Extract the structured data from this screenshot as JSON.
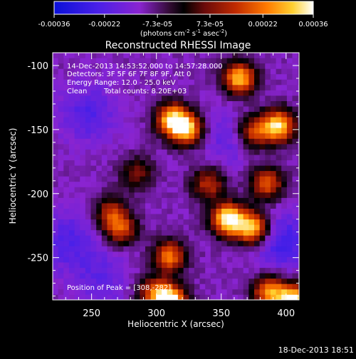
{
  "chart_data": {
    "type": "heatmap",
    "title": "Reconstructed RHESSI Image",
    "xlabel": "Heliocentric X (arcsec)",
    "ylabel": "Heliocentric Y (arcsec)",
    "xlim": [
      220,
      410
    ],
    "ylim": [
      -283,
      -90
    ],
    "x_ticks": [
      "250",
      "300",
      "350",
      "400"
    ],
    "y_ticks": [
      "-100",
      "-150",
      "-200",
      "-250"
    ],
    "colorbar": {
      "range": [
        -0.00036,
        0.00036
      ],
      "tick_labels": [
        "-0.00036",
        "-0.00022",
        "-7.3e-05",
        "7.3e-05",
        "0.00022",
        "0.00036"
      ],
      "unit_prefix": "(photons cm",
      "unit_sup1": "-2",
      "unit_mid": " s",
      "unit_sup2": "-1",
      "unit_mid2": " asec",
      "unit_sup3": "-2",
      "unit_suffix": ")"
    },
    "annotations": {
      "time_range": "14-Dec-2013 14:53:52.000 to 14:57:28.000",
      "detectors": "Detectors: 3F 5F 6F 7F 8F 9F, Att 0",
      "energy_range": "Energy Range: 12.0 - 25.0 keV",
      "clean_label": "Clean",
      "total_counts": "Total counts: 8.20E+03",
      "peak": "Position of Peak = [308,-282]"
    },
    "peak_position": [
      308,
      -282
    ],
    "bright_regions": [
      {
        "x": 310,
        "y": -140,
        "intensity": 0.8
      },
      {
        "x": 322,
        "y": -148,
        "intensity": 0.75
      },
      {
        "x": 362,
        "y": -108,
        "intensity": 0.8
      },
      {
        "x": 392,
        "y": -145,
        "intensity": 0.85
      },
      {
        "x": 338,
        "y": -190,
        "intensity": 0.5
      },
      {
        "x": 353,
        "y": -218,
        "intensity": 0.95
      },
      {
        "x": 372,
        "y": -225,
        "intensity": 0.85
      },
      {
        "x": 383,
        "y": -190,
        "intensity": 0.6
      },
      {
        "x": 308,
        "y": -247,
        "intensity": 0.65
      },
      {
        "x": 270,
        "y": -225,
        "intensity": 0.55
      },
      {
        "x": 295,
        "y": -275,
        "intensity": 0.45
      },
      {
        "x": 308,
        "y": -282,
        "intensity": 1.0
      },
      {
        "x": 385,
        "y": -275,
        "intensity": 0.7
      },
      {
        "x": 404,
        "y": -282,
        "intensity": 0.95
      },
      {
        "x": 262,
        "y": -212,
        "intensity": 0.4
      },
      {
        "x": 283,
        "y": -182,
        "intensity": 0.35
      },
      {
        "x": 373,
        "y": -150,
        "intensity": 0.55
      }
    ],
    "dark_regions": [
      {
        "x": 352,
        "y": -155,
        "intensity": -0.15
      },
      {
        "x": 245,
        "y": -135,
        "intensity": -0.2
      },
      {
        "x": 230,
        "y": -235,
        "intensity": -0.2
      },
      {
        "x": 395,
        "y": -235,
        "intensity": -0.25
      },
      {
        "x": 255,
        "y": -265,
        "intensity": -0.15
      }
    ]
  },
  "footer": {
    "timestamp": "18-Dec-2013 18:51"
  }
}
